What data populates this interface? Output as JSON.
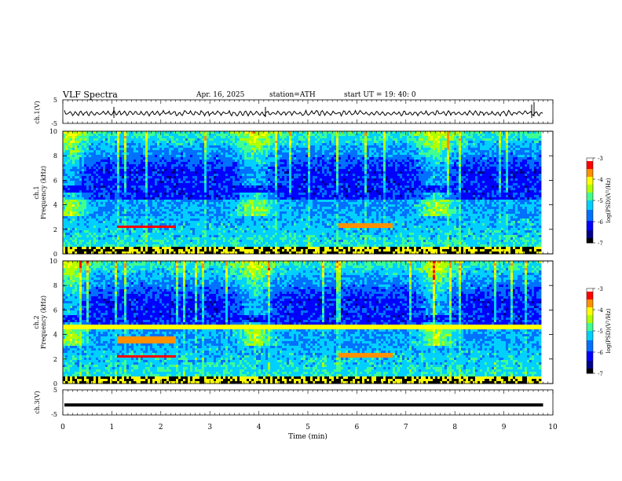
{
  "header": {
    "title": "VLF  Spectra",
    "date": "Apr. 16, 2025",
    "station": "station=ATH",
    "start": "start  UT  =   19: 40: 0"
  },
  "chart_data": [
    {
      "type": "line",
      "name": "ch1-waveform",
      "ylabel": "ch.1(V)",
      "ylim": [
        -5,
        5
      ],
      "yticks": [
        "5",
        "-5"
      ],
      "xlim": [
        0,
        10
      ],
      "description_level": "oscillating trace around -1 V"
    },
    {
      "type": "heatmap",
      "name": "ch1-spectrogram",
      "ylabel": "ch.1\nFrequency  (kHz)",
      "ylabel_lines": [
        "ch.1",
        "Frequency  (kHz)"
      ],
      "ylim": [
        0,
        10
      ],
      "yticks": [
        "0",
        "2",
        "4",
        "6",
        "8",
        "10"
      ],
      "xlim": [
        0,
        10
      ],
      "data_end_min": 9.8,
      "colorbar": {
        "label": "log(PSD)(V²/Hz)",
        "range": [
          -7,
          -3
        ],
        "ticks": [
          "-3",
          "-4",
          "-5",
          "-6",
          "-7"
        ]
      }
    },
    {
      "type": "heatmap",
      "name": "ch2-spectrogram",
      "ylabel_lines": [
        "ch.2",
        "Frequency  (kHz)"
      ],
      "ylim": [
        0,
        10
      ],
      "yticks": [
        "0",
        "2",
        "4",
        "6",
        "8",
        "10"
      ],
      "xlim": [
        0,
        10
      ],
      "data_end_min": 9.8,
      "colorbar": {
        "label": "log(PSD)(V²/Hz)",
        "range": [
          -7,
          -3
        ],
        "ticks": [
          "-3",
          "-4",
          "-5",
          "-6",
          "-7"
        ]
      }
    },
    {
      "type": "line",
      "name": "ch3-waveform",
      "ylabel": "ch.3(V)",
      "ylim": [
        -5,
        5
      ],
      "yticks": [
        "5",
        "-5"
      ],
      "xlim": [
        0,
        10
      ],
      "level": -1
    }
  ],
  "xaxis": {
    "label": "Time  (min)",
    "ticks": [
      "0",
      "1",
      "2",
      "3",
      "4",
      "5",
      "6",
      "7",
      "8",
      "9",
      "10"
    ]
  },
  "colors": {
    "colormap": [
      "#000000",
      "#00008b",
      "#0000ff",
      "#0070ff",
      "#00d0ff",
      "#40ff90",
      "#b0ff00",
      "#ffff00",
      "#ff9000",
      "#ff0000",
      "#ffffff"
    ]
  }
}
